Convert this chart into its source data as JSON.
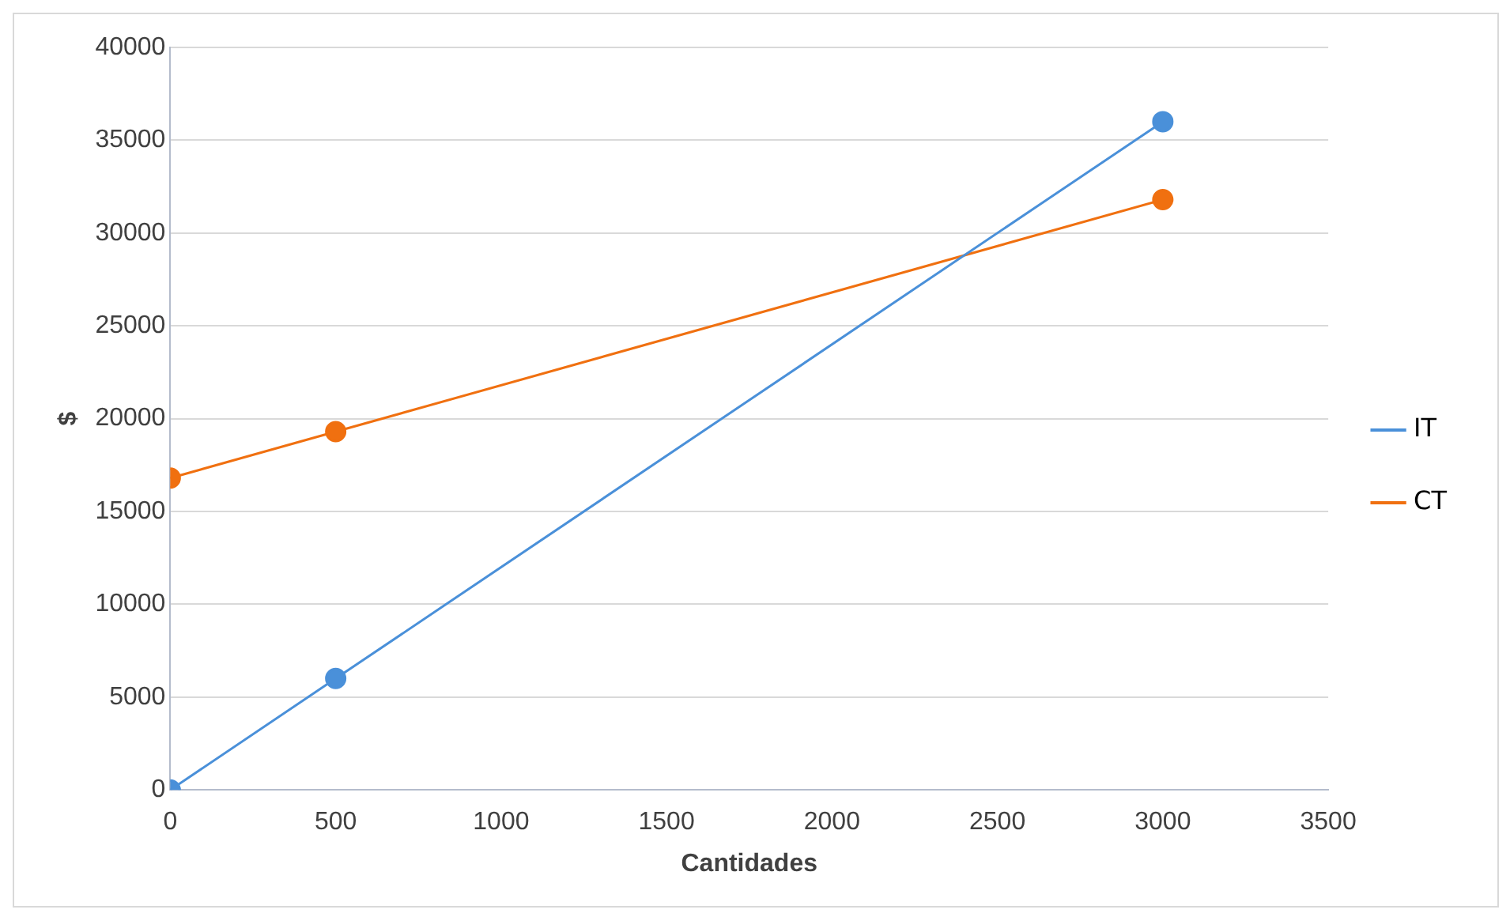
{
  "chart_data": {
    "type": "line",
    "xlabel": "Cantidades",
    "ylabel": "$",
    "xlim": [
      0,
      3500
    ],
    "xticks": [
      0,
      500,
      1000,
      1500,
      2000,
      2500,
      3000,
      3500
    ],
    "ylim": [
      0,
      40000
    ],
    "yticks": [
      0,
      5000,
      10000,
      15000,
      20000,
      25000,
      30000,
      35000,
      40000
    ],
    "grid": "y",
    "legend": "right",
    "marker": "circle",
    "line_style": "solid",
    "series": [
      {
        "name": "IT",
        "color": "#4a90d9",
        "x": [
          0,
          500,
          3000
        ],
        "values": [
          0,
          6000,
          36000
        ]
      },
      {
        "name": "CT",
        "color": "#f07010",
        "x": [
          0,
          500,
          3000
        ],
        "values": [
          16800,
          19300,
          31800
        ]
      }
    ]
  }
}
